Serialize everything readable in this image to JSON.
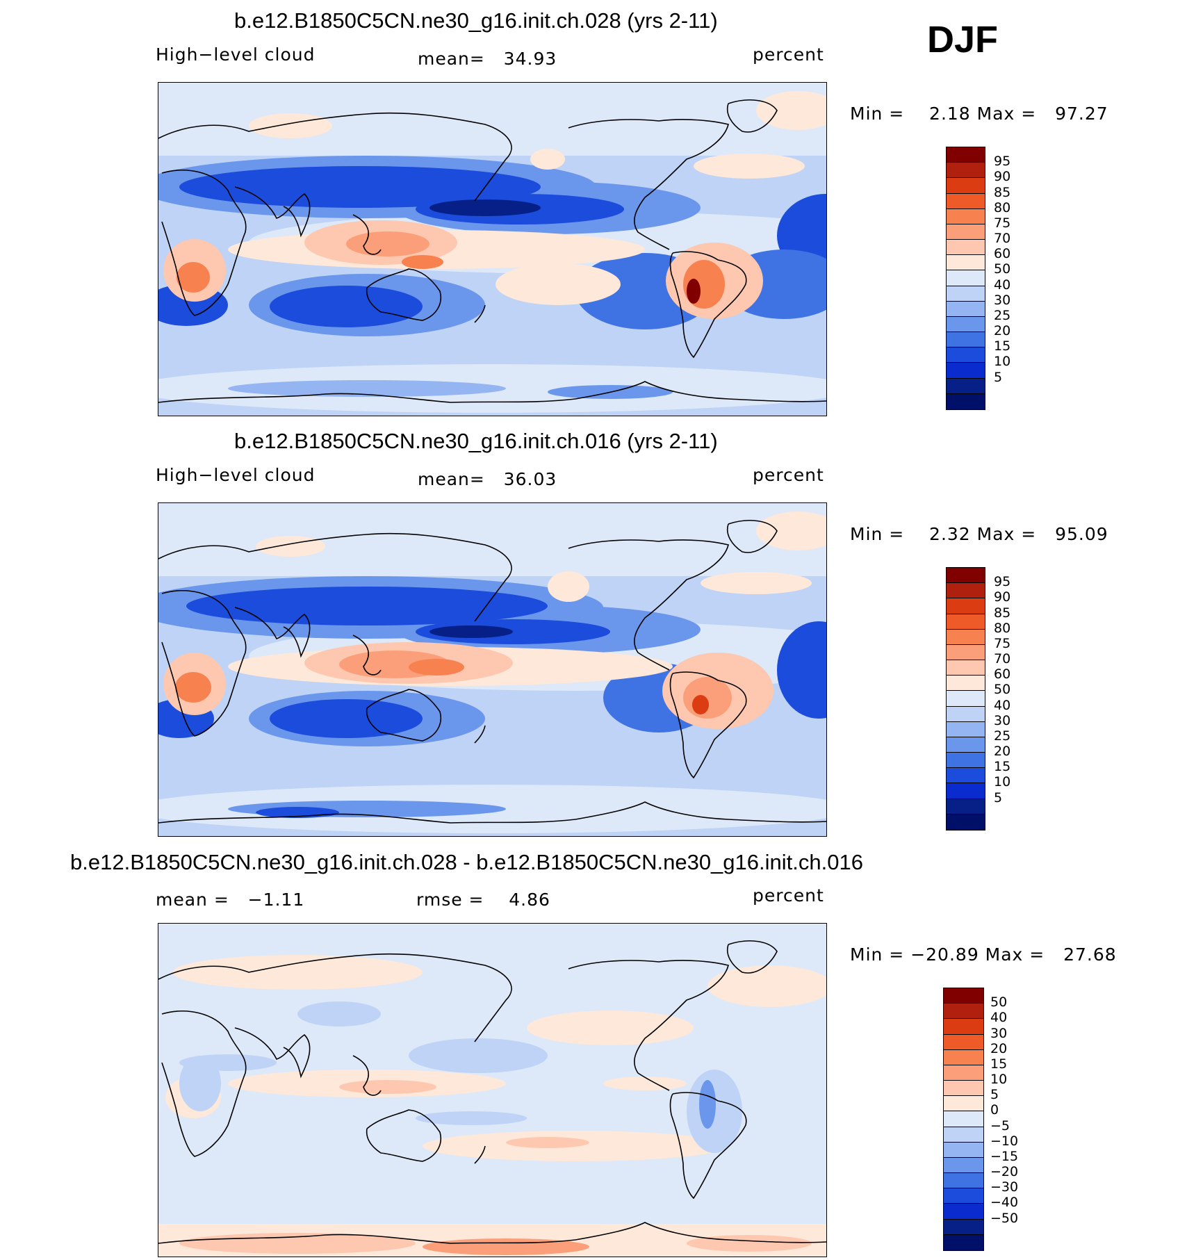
{
  "season": "DJF",
  "palettes": {
    "abs": [
      "#800000",
      "#b0200f",
      "#db3c12",
      "#ee5a28",
      "#f7814f",
      "#fb9f7a",
      "#fdc8af",
      "#fde8da",
      "#dde8f8",
      "#bed3f6",
      "#94b5f2",
      "#6a96ec",
      "#3f72e2",
      "#1c4cdb",
      "#0a2ccf",
      "#062088",
      "#001068"
    ],
    "diff": [
      "#800000",
      "#b0200f",
      "#db3c12",
      "#ee5a28",
      "#f7814f",
      "#fb9f7a",
      "#fdc8af",
      "#fde8da",
      "#dde8f8",
      "#bed3f6",
      "#94b5f2",
      "#6a96ec",
      "#3f72e2",
      "#1c4cdb",
      "#0a2ccf",
      "#062088",
      "#001068"
    ]
  },
  "panels": [
    {
      "title": "b.e12.B1850C5CN.ne30_g16.init.ch.028 (yrs 2-11)",
      "left_label": "High−level cloud",
      "center_label": "mean=   34.93",
      "right_label": "percent",
      "minmax": "Min =    2.18 Max =   97.27",
      "cbar_ticks": [
        "95",
        "90",
        "85",
        "80",
        "75",
        "70",
        "60",
        "50",
        "40",
        "30",
        "25",
        "20",
        "15",
        "10",
        "5"
      ],
      "variant": "a"
    },
    {
      "title": "b.e12.B1850C5CN.ne30_g16.init.ch.016 (yrs 2-11)",
      "left_label": "High−level cloud",
      "center_label": "mean=   36.03",
      "right_label": "percent",
      "minmax": "Min =    2.32 Max =   95.09",
      "cbar_ticks": [
        "95",
        "90",
        "85",
        "80",
        "75",
        "70",
        "60",
        "50",
        "40",
        "30",
        "25",
        "20",
        "15",
        "10",
        "5"
      ],
      "variant": "b"
    },
    {
      "title": "b.e12.B1850C5CN.ne30_g16.init.ch.028 - b.e12.B1850C5CN.ne30_g16.init.ch.016",
      "left_label": "mean =   −1.11",
      "center_label": "rmse =    4.86",
      "right_label": "percent",
      "minmax": "Min = −20.89 Max =   27.68",
      "cbar_ticks": [
        "50",
        "40",
        "30",
        "20",
        "15",
        "10",
        "5",
        "0",
        "−5",
        "−10",
        "−15",
        "−20",
        "−30",
        "−40",
        "−50"
      ],
      "variant": "diff"
    }
  ]
}
